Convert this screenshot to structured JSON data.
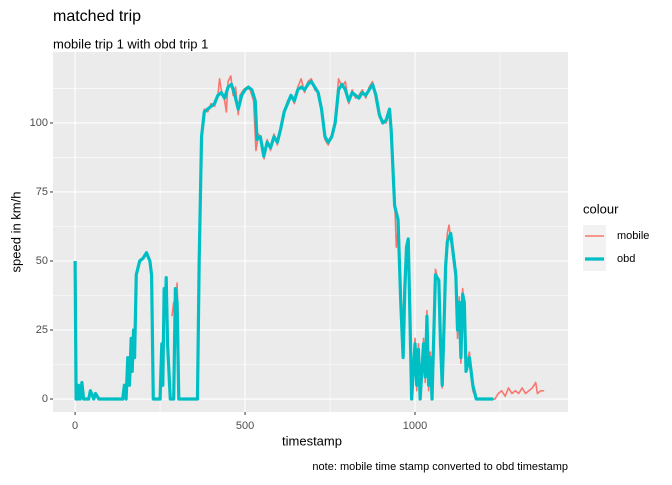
{
  "chart_data": {
    "type": "line",
    "title": "matched trip",
    "subtitle": "mobile trip 1 with obd trip 1",
    "x_label": "timestamp",
    "y_label": "speed in km/h",
    "caption": "note: mobile time stamp converted to obd timestamp",
    "legend_title": "colour",
    "legend_position": "right",
    "xlim": [
      -65,
      1450
    ],
    "ylim": [
      -4.7,
      125.7
    ],
    "xticks": [
      0,
      500,
      1000
    ],
    "yticks": [
      0,
      25,
      50,
      75,
      100
    ],
    "x_minor_ticks": [
      250,
      750,
      1250
    ],
    "y_minor_ticks": [
      12.5,
      37.5,
      62.5,
      87.5,
      112.5
    ],
    "grid": true,
    "series": [
      {
        "name": "mobile",
        "color": "#F8766D",
        "x": [
          285,
          290,
          295,
          300,
          303,
          306,
          360,
          366,
          372,
          380,
          390,
          400,
          410,
          420,
          425,
          430,
          440,
          445,
          450,
          458,
          465,
          472,
          480,
          485,
          495,
          505,
          515,
          525,
          532,
          540,
          548,
          556,
          565,
          575,
          585,
          595,
          605,
          615,
          625,
          635,
          645,
          655,
          665,
          675,
          685,
          695,
          705,
          715,
          725,
          735,
          745,
          755,
          765,
          775,
          785,
          795,
          805,
          815,
          825,
          835,
          845,
          855,
          865,
          875,
          885,
          895,
          905,
          915,
          925,
          930,
          940,
          945,
          952,
          958,
          962,
          968,
          975,
          980,
          985,
          990,
          1000,
          1005,
          1010,
          1015,
          1025,
          1030,
          1035,
          1040,
          1045,
          1050,
          1060,
          1070,
          1075,
          1080,
          1085,
          1090,
          1095,
          1100,
          1105,
          1110,
          1120,
          1125,
          1130,
          1135,
          1140,
          1145,
          1150,
          1160,
          1165,
          1170,
          1180,
          1235,
          1245,
          1255,
          1265,
          1275,
          1285,
          1295,
          1305,
          1315,
          1325,
          1335,
          1345,
          1355,
          1360,
          1370,
          1380
        ],
        "values": [
          30,
          35,
          25,
          42,
          30,
          0,
          0,
          52,
          96,
          105,
          104,
          107,
          106,
          110,
          116,
          112,
          108,
          104,
          115,
          117,
          110,
          113,
          103,
          110,
          112,
          113,
          112,
          108,
          90,
          96,
          93,
          87,
          94,
          90,
          96,
          92,
          99,
          103,
          108,
          110,
          107,
          113,
          116,
          111,
          115,
          116,
          112,
          111,
          104,
          94,
          92,
          96,
          101,
          116,
          113,
          115,
          107,
          112,
          109,
          110,
          112,
          109,
          113,
          115,
          108,
          102,
          101,
          100,
          104,
          95,
          72,
          55,
          64,
          32,
          18,
          40,
          56,
          57,
          28,
          0,
          22,
          3,
          20,
          0,
          22,
          6,
          32,
          3,
          17,
          0,
          47,
          42,
          18,
          4,
          27,
          50,
          60,
          63,
          58,
          53,
          43,
          22,
          37,
          13,
          40,
          34,
          12,
          17,
          8,
          3,
          0,
          0,
          2,
          3,
          1,
          4,
          2,
          3,
          2,
          4,
          2,
          3,
          4,
          6,
          2,
          3,
          3
        ]
      },
      {
        "name": "obd",
        "color": "#00BFC4",
        "x": [
          0,
          3,
          8,
          10,
          15,
          20,
          25,
          40,
          45,
          55,
          60,
          70,
          140,
          145,
          150,
          155,
          160,
          165,
          168,
          172,
          175,
          180,
          190,
          200,
          210,
          220,
          225,
          230,
          250,
          255,
          258,
          262,
          265,
          268,
          272,
          276,
          280,
          290,
          295,
          300,
          305,
          360,
          365,
          372,
          380,
          390,
          400,
          410,
          420,
          430,
          440,
          450,
          460,
          470,
          480,
          490,
          500,
          510,
          520,
          530,
          535,
          545,
          555,
          565,
          575,
          585,
          595,
          605,
          615,
          625,
          635,
          645,
          655,
          665,
          675,
          685,
          695,
          705,
          715,
          725,
          735,
          745,
          755,
          765,
          775,
          785,
          795,
          805,
          815,
          825,
          835,
          845,
          855,
          865,
          875,
          885,
          895,
          905,
          915,
          925,
          930,
          940,
          950,
          958,
          965,
          970,
          975,
          980,
          985,
          990,
          1000,
          1005,
          1010,
          1015,
          1025,
          1030,
          1035,
          1040,
          1045,
          1050,
          1060,
          1070,
          1075,
          1080,
          1085,
          1090,
          1095,
          1105,
          1110,
          1120,
          1125,
          1130,
          1135,
          1140,
          1145,
          1150,
          1160,
          1165,
          1170,
          1180,
          1230
        ],
        "values": [
          50,
          0,
          0,
          5,
          0,
          6,
          0,
          0,
          3,
          0,
          2,
          0,
          0,
          5,
          0,
          15,
          5,
          22,
          10,
          25,
          15,
          45,
          50,
          51,
          53,
          50,
          45,
          0,
          0,
          20,
          5,
          40,
          30,
          44,
          20,
          10,
          0,
          0,
          40,
          35,
          0,
          0,
          50,
          95,
          104,
          105,
          106,
          107,
          110,
          111,
          109,
          113,
          114,
          110,
          105,
          110,
          112,
          113,
          112,
          108,
          94,
          95,
          88,
          93,
          91,
          95,
          93,
          98,
          104,
          107,
          110,
          108,
          112,
          113,
          112,
          114,
          115,
          113,
          111,
          105,
          95,
          93,
          95,
          100,
          112,
          114,
          112,
          108,
          111,
          110,
          109,
          111,
          110,
          112,
          114,
          110,
          103,
          100,
          101,
          105,
          97,
          70,
          65,
          35,
          15,
          40,
          55,
          58,
          30,
          0,
          20,
          5,
          18,
          0,
          20,
          8,
          30,
          5,
          15,
          0,
          45,
          43,
          20,
          5,
          25,
          48,
          57,
          60,
          55,
          45,
          25,
          35,
          15,
          38,
          35,
          10,
          15,
          10,
          5,
          0,
          0
        ]
      }
    ]
  }
}
